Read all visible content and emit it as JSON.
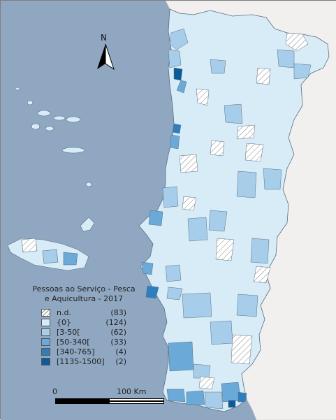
{
  "legend": {
    "title_line1": "Pessoas ao Serviço - Pesca",
    "title_line2": "e Aquicultura - 2017",
    "classes": [
      {
        "label": "n.d.",
        "count": "(83)",
        "color": "hatch"
      },
      {
        "label": "{0}",
        "count": "(124)",
        "color": "#d8ecf8"
      },
      {
        "label": "[3-50[",
        "count": "(62)",
        "color": "#a6cdea"
      },
      {
        "label": "[50-340[",
        "count": "(33)",
        "color": "#6aa9d8"
      },
      {
        "label": "[340-765]",
        "count": "(4)",
        "color": "#2f7fc0"
      },
      {
        "label": "[1135-1500]",
        "count": "(2)",
        "color": "#0b5b9c"
      }
    ]
  },
  "north_arrow": {
    "label": "N"
  },
  "scale_bar": {
    "start_label": "0",
    "end_label": "100 Km"
  },
  "colors": {
    "sea": "#8fa7c0",
    "land_spain": "#f2f0ee",
    "border": "#7f7f7f"
  }
}
